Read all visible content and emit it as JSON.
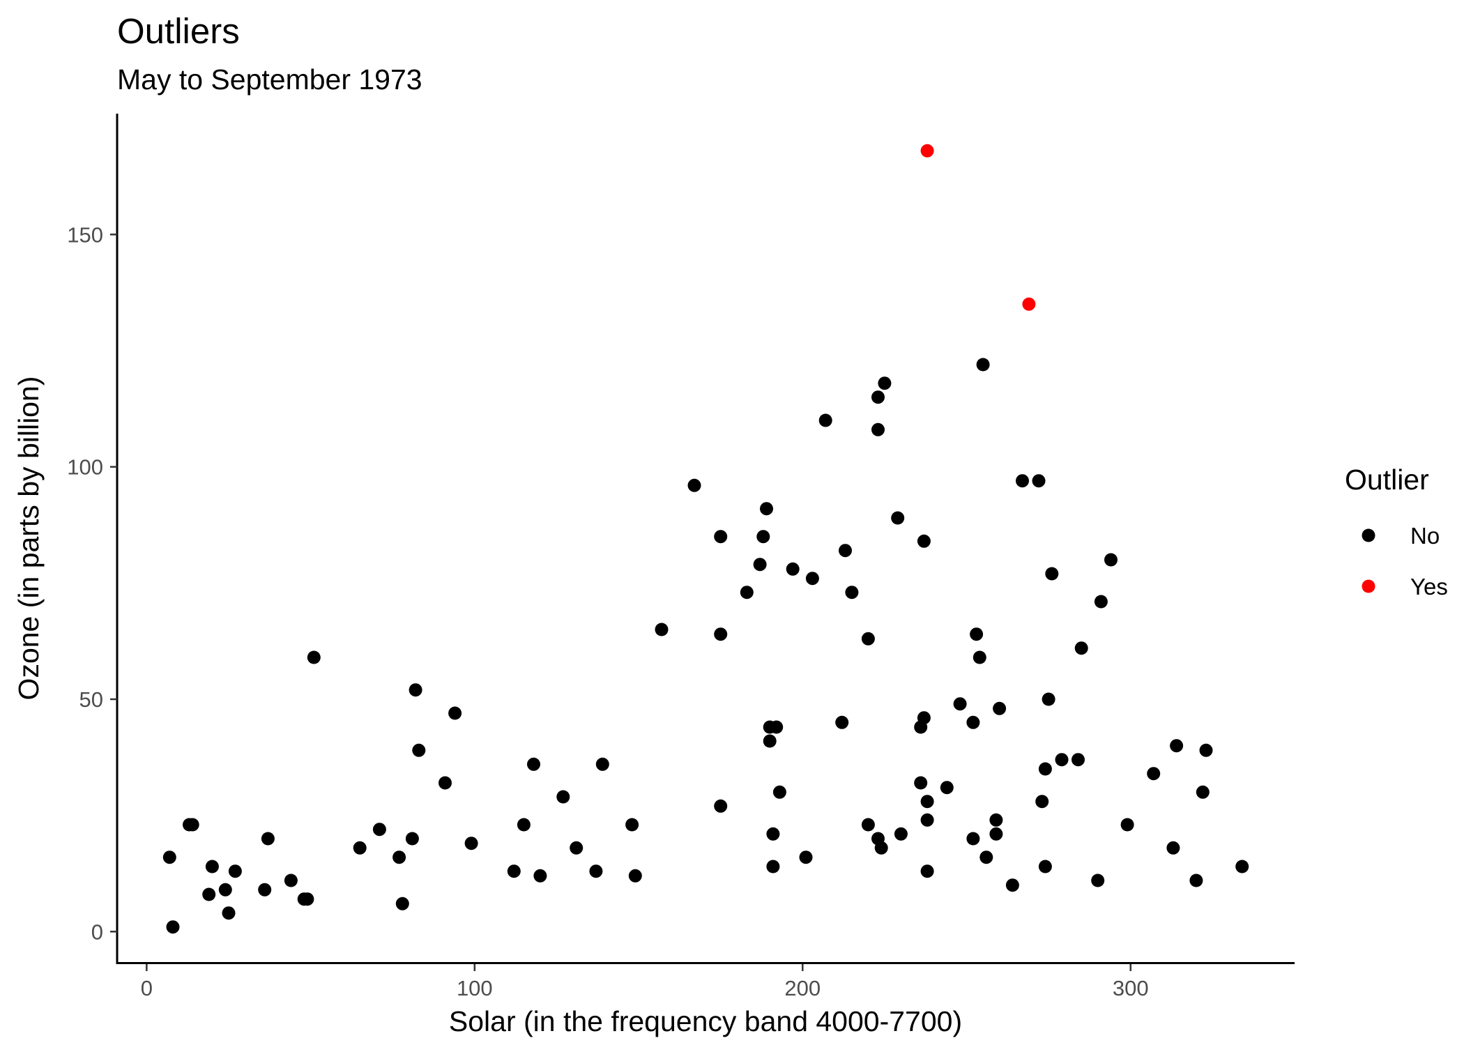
{
  "chart_data": {
    "type": "scatter",
    "title": "Outliers",
    "subtitle": "May to September 1973",
    "xlabel": "Solar (in the frequency band 4000-7700)",
    "ylabel": "Ozone (in parts by billion)",
    "xlim": [
      -9,
      350
    ],
    "ylim": [
      -7,
      176
    ],
    "x_ticks": [
      0,
      100,
      200,
      300
    ],
    "x_tick_labels": [
      "0",
      "100",
      "200",
      "300"
    ],
    "y_ticks": [
      0,
      50,
      100,
      150
    ],
    "y_tick_labels": [
      "0",
      "50",
      "100",
      "150"
    ],
    "grid": false,
    "legend": {
      "title": "Outlier",
      "placement": "right",
      "entries": [
        {
          "label": "No",
          "color": "#000000"
        },
        {
          "label": "Yes",
          "color": "#ff0000"
        }
      ]
    },
    "series": [
      {
        "name": "No",
        "color": "#000000",
        "points": [
          [
            7,
            16
          ],
          [
            8,
            1
          ],
          [
            13,
            23
          ],
          [
            14,
            23
          ],
          [
            19,
            8
          ],
          [
            20,
            14
          ],
          [
            24,
            9
          ],
          [
            25,
            4
          ],
          [
            27,
            13
          ],
          [
            36,
            9
          ],
          [
            37,
            20
          ],
          [
            44,
            11
          ],
          [
            48,
            7
          ],
          [
            49,
            7
          ],
          [
            51,
            59
          ],
          [
            65,
            18
          ],
          [
            71,
            22
          ],
          [
            77,
            16
          ],
          [
            78,
            6
          ],
          [
            81,
            20
          ],
          [
            82,
            52
          ],
          [
            83,
            39
          ],
          [
            91,
            32
          ],
          [
            94,
            47
          ],
          [
            99,
            19
          ],
          [
            112,
            13
          ],
          [
            115,
            23
          ],
          [
            118,
            36
          ],
          [
            120,
            12
          ],
          [
            127,
            29
          ],
          [
            131,
            18
          ],
          [
            137,
            13
          ],
          [
            139,
            36
          ],
          [
            148,
            23
          ],
          [
            149,
            12
          ],
          [
            157,
            65
          ],
          [
            167,
            96
          ],
          [
            175,
            85
          ],
          [
            175,
            64
          ],
          [
            175,
            27
          ],
          [
            183,
            73
          ],
          [
            187,
            79
          ],
          [
            188,
            85
          ],
          [
            189,
            91
          ],
          [
            190,
            44
          ],
          [
            190,
            41
          ],
          [
            191,
            21
          ],
          [
            191,
            14
          ],
          [
            192,
            44
          ],
          [
            193,
            30
          ],
          [
            197,
            78
          ],
          [
            201,
            16
          ],
          [
            203,
            76
          ],
          [
            207,
            110
          ],
          [
            212,
            45
          ],
          [
            213,
            82
          ],
          [
            215,
            73
          ],
          [
            220,
            63
          ],
          [
            220,
            23
          ],
          [
            223,
            115
          ],
          [
            223,
            108
          ],
          [
            223,
            20
          ],
          [
            224,
            18
          ],
          [
            225,
            118
          ],
          [
            229,
            89
          ],
          [
            230,
            21
          ],
          [
            236,
            44
          ],
          [
            236,
            32
          ],
          [
            237,
            84
          ],
          [
            237,
            46
          ],
          [
            238,
            28
          ],
          [
            238,
            24
          ],
          [
            238,
            13
          ],
          [
            244,
            31
          ],
          [
            248,
            49
          ],
          [
            252,
            45
          ],
          [
            252,
            20
          ],
          [
            253,
            64
          ],
          [
            254,
            59
          ],
          [
            255,
            122
          ],
          [
            256,
            16
          ],
          [
            259,
            24
          ],
          [
            259,
            21
          ],
          [
            260,
            48
          ],
          [
            264,
            10
          ],
          [
            267,
            97
          ],
          [
            272,
            97
          ],
          [
            273,
            28
          ],
          [
            274,
            35
          ],
          [
            274,
            14
          ],
          [
            275,
            50
          ],
          [
            276,
            77
          ],
          [
            279,
            37
          ],
          [
            284,
            37
          ],
          [
            285,
            61
          ],
          [
            290,
            11
          ],
          [
            291,
            71
          ],
          [
            294,
            80
          ],
          [
            299,
            23
          ],
          [
            307,
            34
          ],
          [
            313,
            18
          ],
          [
            314,
            40
          ],
          [
            320,
            11
          ],
          [
            322,
            30
          ],
          [
            323,
            39
          ],
          [
            334,
            14
          ]
        ]
      },
      {
        "name": "Yes",
        "color": "#ff0000",
        "points": [
          [
            238,
            168
          ],
          [
            269,
            135
          ]
        ]
      }
    ]
  }
}
